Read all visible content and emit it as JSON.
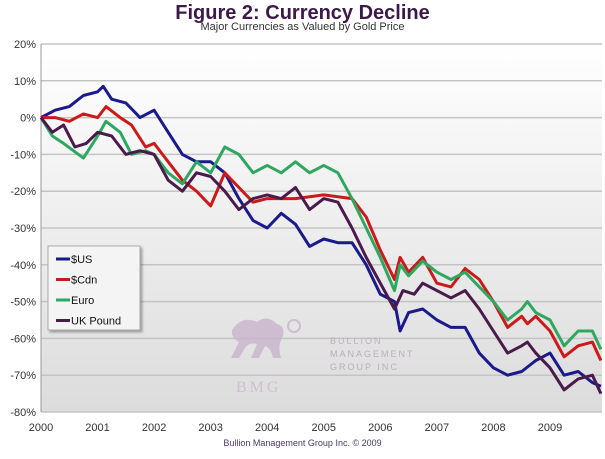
{
  "chart_data": {
    "type": "line",
    "title": "Figure 2: Currency Decline",
    "subtitle": "Major Currencies as Valued by Gold Price",
    "xlabel": "",
    "ylabel": "",
    "xlim": [
      2000,
      2009.92
    ],
    "ylim": [
      -80,
      20
    ],
    "grid": true,
    "legend_position": "left",
    "x_ticks": [
      "2000",
      "2001",
      "2002",
      "2003",
      "2004",
      "2005",
      "2006",
      "2007",
      "2008",
      "2009"
    ],
    "y_ticks": [
      "20%",
      "10%",
      "0%",
      "-10%",
      "-20%",
      "-30%",
      "-40%",
      "-50%",
      "-60%",
      "-70%",
      "-80%"
    ],
    "series": [
      {
        "name": "$US",
        "color": "#1a1a8c",
        "x": [
          2000,
          2000.25,
          2000.5,
          2000.75,
          2001,
          2001.1,
          2001.25,
          2001.5,
          2001.75,
          2002,
          2002.25,
          2002.5,
          2002.75,
          2003,
          2003.25,
          2003.5,
          2003.75,
          2004,
          2004.25,
          2004.5,
          2004.75,
          2005,
          2005.25,
          2005.5,
          2005.75,
          2006,
          2006.25,
          2006.35,
          2006.5,
          2006.75,
          2007,
          2007.25,
          2007.5,
          2007.75,
          2008,
          2008.25,
          2008.5,
          2008.75,
          2009,
          2009.25,
          2009.5,
          2009.75,
          2009.9
        ],
        "y": [
          0,
          2,
          3,
          6,
          7,
          8.5,
          5,
          4,
          0,
          2,
          -4,
          -10,
          -12,
          -12,
          -15,
          -22,
          -28,
          -30,
          -26,
          -29,
          -35,
          -33,
          -34,
          -34,
          -40,
          -48,
          -50,
          -58,
          -53,
          -52,
          -55,
          -57,
          -57,
          -64,
          -68,
          -70,
          -69,
          -66,
          -64,
          -70,
          -69,
          -72,
          -73
        ]
      },
      {
        "name": "$Cdn",
        "color": "#cc1a1a",
        "x": [
          2000,
          2000.25,
          2000.5,
          2000.75,
          2001,
          2001.15,
          2001.4,
          2001.6,
          2001.85,
          2002,
          2002.25,
          2002.5,
          2002.75,
          2003,
          2003.25,
          2003.5,
          2003.75,
          2004,
          2004.5,
          2005,
          2005.5,
          2005.75,
          2006,
          2006.25,
          2006.35,
          2006.5,
          2006.75,
          2007,
          2007.25,
          2007.5,
          2007.75,
          2008,
          2008.25,
          2008.5,
          2008.6,
          2008.75,
          2009,
          2009.25,
          2009.5,
          2009.75,
          2009.9
        ],
        "y": [
          0,
          0,
          -1,
          1,
          0,
          3,
          0,
          -2,
          -8,
          -7,
          -12,
          -17,
          -20,
          -24,
          -15,
          -19,
          -23,
          -22,
          -22,
          -21,
          -22,
          -27,
          -36,
          -44,
          -38,
          -42,
          -38,
          -45,
          -46,
          -41,
          -44,
          -50,
          -57,
          -54,
          -56,
          -54,
          -58,
          -65,
          -62,
          -61,
          -66
        ]
      },
      {
        "name": "Euro",
        "color": "#2ea860",
        "x": [
          2000,
          2000.2,
          2000.4,
          2000.75,
          2001,
          2001.15,
          2001.4,
          2001.6,
          2001.85,
          2002,
          2002.25,
          2002.5,
          2002.75,
          2003,
          2003.25,
          2003.5,
          2003.75,
          2004,
          2004.25,
          2004.5,
          2004.75,
          2005,
          2005.25,
          2005.5,
          2005.75,
          2006,
          2006.25,
          2006.35,
          2006.5,
          2006.75,
          2007,
          2007.25,
          2007.5,
          2007.75,
          2008,
          2008.25,
          2008.5,
          2008.6,
          2008.75,
          2009,
          2009.25,
          2009.5,
          2009.75,
          2009.9
        ],
        "y": [
          0,
          -5,
          -7,
          -11,
          -5,
          -1,
          -4,
          -10,
          -9,
          -10,
          -15,
          -18,
          -12,
          -15,
          -8,
          -10,
          -15,
          -13,
          -15,
          -12,
          -15,
          -13,
          -15,
          -22,
          -30,
          -38,
          -47,
          -40,
          -43,
          -39,
          -42,
          -44,
          -42,
          -46,
          -50,
          -55,
          -52,
          -50,
          -53,
          -55,
          -62,
          -58,
          -58,
          -63
        ]
      },
      {
        "name": "UK Pound",
        "color": "#4a1a4a",
        "x": [
          2000,
          2000.2,
          2000.4,
          2000.6,
          2000.8,
          2001,
          2001.25,
          2001.5,
          2001.75,
          2002,
          2002.25,
          2002.5,
          2002.75,
          2003,
          2003.25,
          2003.5,
          2003.75,
          2004,
          2004.25,
          2004.5,
          2004.75,
          2005,
          2005.25,
          2005.5,
          2005.75,
          2006,
          2006.25,
          2006.4,
          2006.6,
          2006.75,
          2007,
          2007.25,
          2007.5,
          2007.75,
          2008,
          2008.25,
          2008.5,
          2008.6,
          2008.75,
          2009,
          2009.25,
          2009.5,
          2009.75,
          2009.9
        ],
        "y": [
          0,
          -4,
          -2,
          -8,
          -7,
          -4,
          -5,
          -10,
          -9,
          -10,
          -17,
          -20,
          -15,
          -16,
          -20,
          -25,
          -22,
          -21,
          -22,
          -19,
          -25,
          -22,
          -23,
          -30,
          -38,
          -45,
          -52,
          -47,
          -48,
          -45,
          -47,
          -49,
          -47,
          -52,
          -58,
          -64,
          -62,
          -61,
          -64,
          -68,
          -74,
          -71,
          -70,
          -75
        ]
      }
    ]
  },
  "watermark": {
    "name_lines": [
      "BULLION",
      "MANAGEMENT",
      "GROUP INC"
    ],
    "initials": "BMG"
  },
  "footer": "Bullion Management Group Inc. © 2009"
}
